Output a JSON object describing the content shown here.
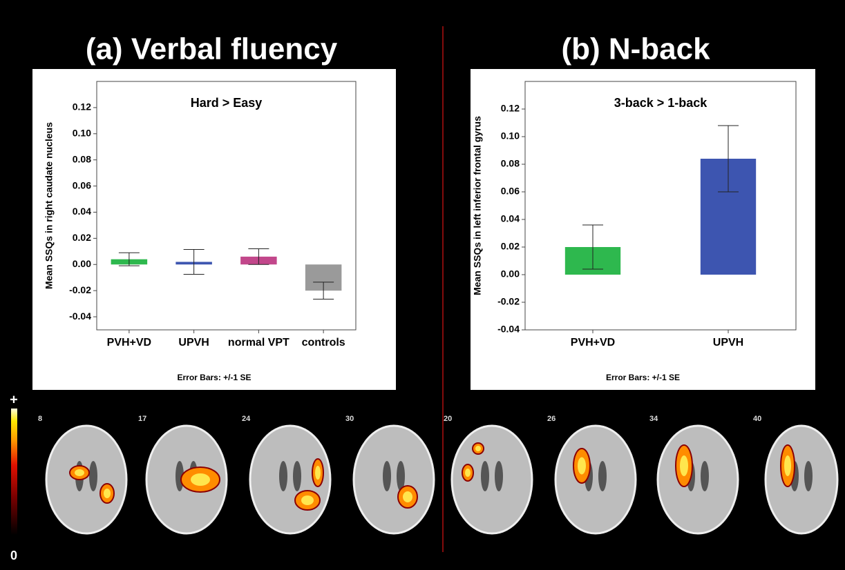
{
  "chart_data": [
    {
      "type": "bar",
      "title": "(a) Verbal fluency",
      "subtitle": "Hard > Easy",
      "ylabel": "Mean SSQs in right caudate nucleus",
      "note": "Error Bars: +/-1 SE",
      "categories": [
        "PVH+VD",
        "UPVH",
        "normal VPT",
        "controls"
      ],
      "values": [
        0.004,
        0.002,
        0.006,
        -0.02
      ],
      "errors": [
        0.005,
        0.0095,
        0.006,
        0.0065
      ],
      "colors": [
        "#2eb84e",
        "#3d55b0",
        "#c2478b",
        "#9a9a9a"
      ],
      "ylim": [
        -0.05,
        0.14
      ],
      "yticks": [
        -0.04,
        -0.02,
        {
          "value": 0,
          "label": "0.00"
        },
        0.02,
        0.04,
        0.06,
        0.08,
        {
          "value": 0.1,
          "label": "0.10"
        },
        0.12
      ]
    },
    {
      "type": "bar",
      "title": "(b) N-back",
      "subtitle": "3-back > 1-back",
      "ylabel": "Mean SSQs in left inferior frontal gyrus",
      "note": "Error Bars: +/-1 SE",
      "categories": [
        "PVH+VD",
        "UPVH"
      ],
      "values": [
        0.02,
        0.084
      ],
      "errors": [
        0.016,
        0.024
      ],
      "colors": [
        "#2eb84e",
        "#3d55b0"
      ],
      "ylim": [
        -0.04,
        0.14
      ],
      "yticks": [
        -0.04,
        -0.02,
        {
          "value": 0,
          "label": "0.00"
        },
        0.02,
        0.04,
        0.06,
        0.08,
        {
          "value": 0.1,
          "label": "0.10"
        },
        0.12
      ]
    }
  ],
  "slices": [
    [
      8,
      17,
      24,
      30
    ],
    [
      20,
      26,
      34,
      40
    ]
  ],
  "colorbar": {
    "max_label": "+",
    "min_label": "0"
  }
}
